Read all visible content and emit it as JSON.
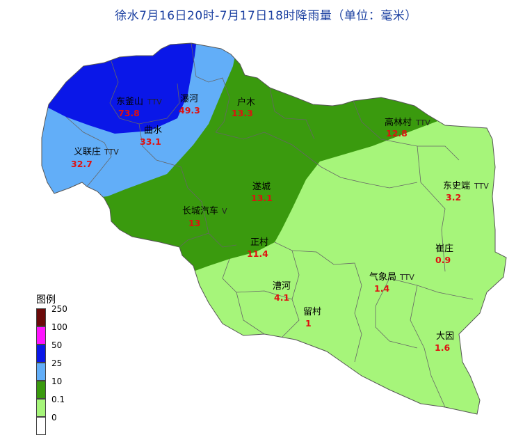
{
  "title": "徐水7月16日20时-7月17日18时降雨量（单位：毫米）",
  "legend": {
    "title": "图例",
    "items": [
      {
        "label": "250",
        "color": "#6b0a0a"
      },
      {
        "label": "100",
        "color": "#ff14ff"
      },
      {
        "label": "50",
        "color": "#0a17e8"
      },
      {
        "label": "25",
        "color": "#62aef8"
      },
      {
        "label": "10",
        "color": "#3a9a0e"
      },
      {
        "label": "0.1",
        "color": "#a6f57a"
      },
      {
        "label": "0",
        "color": "#ffffff"
      }
    ]
  },
  "stations": [
    {
      "name": "东釜山",
      "value": "73.8",
      "mark": "TTV"
    },
    {
      "name": "瀑河",
      "value": "49.3",
      "mark": ""
    },
    {
      "name": "户木",
      "value": "13.3",
      "mark": ""
    },
    {
      "name": "高林村",
      "value": "12.8",
      "mark": "TTV"
    },
    {
      "name": "曲水",
      "value": "33.1",
      "mark": ""
    },
    {
      "name": "义联庄",
      "value": "32.7",
      "mark": "TTV"
    },
    {
      "name": "遂城",
      "value": "13.1",
      "mark": ""
    },
    {
      "name": "东史端",
      "value": "3.2",
      "mark": "TTV"
    },
    {
      "name": "长城汽车",
      "value": "13",
      "mark": "V"
    },
    {
      "name": "正村",
      "value": "11.4",
      "mark": ""
    },
    {
      "name": "崔庄",
      "value": "0.9",
      "mark": ""
    },
    {
      "name": "漕河",
      "value": "4.1",
      "mark": ""
    },
    {
      "name": "气象局",
      "value": "1.4",
      "mark": "TTV"
    },
    {
      "name": "留村",
      "value": "1",
      "mark": ""
    },
    {
      "name": "大因",
      "value": "1.6",
      "mark": ""
    }
  ]
}
